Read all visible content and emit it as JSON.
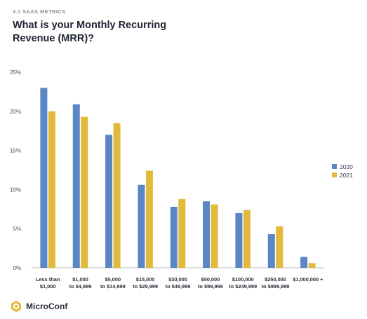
{
  "header": {
    "section": "4.1 SAAS METRICS",
    "title_lines": [
      "What is your Monthly Recurring",
      "Revenue (MRR)?"
    ]
  },
  "brand": {
    "name": "MicroConf"
  },
  "colors": {
    "series_2020": "#5a86c5",
    "series_2021": "#e2b93b",
    "axis": "#b9bcc2"
  },
  "chart_data": {
    "type": "bar",
    "title": "What is your Monthly Recurring Revenue (MRR)?",
    "categories": [
      [
        "Less than",
        "$1,000"
      ],
      [
        "$1,000",
        "to $4,999"
      ],
      [
        "$5,000",
        "to $14,999"
      ],
      [
        "$15,000",
        "to $29,999"
      ],
      [
        "$30,000",
        "to $49,999"
      ],
      [
        "$50,000",
        "to $99,999"
      ],
      [
        "$100,000",
        "to $249,999"
      ],
      [
        "$250,000",
        "to $999,999"
      ],
      [
        "$1,000,000 +"
      ]
    ],
    "series": [
      {
        "name": "2020",
        "values": [
          23.0,
          20.9,
          17.0,
          10.6,
          7.8,
          8.5,
          7.0,
          4.3,
          1.4
        ]
      },
      {
        "name": "2021",
        "values": [
          20.0,
          19.3,
          18.5,
          12.4,
          8.8,
          8.1,
          7.4,
          5.3,
          0.6
        ]
      }
    ],
    "y_ticks": [
      "0%",
      "5%",
      "10%",
      "15%",
      "20%",
      "25%"
    ],
    "y_tick_values": [
      0,
      5,
      10,
      15,
      20,
      25
    ],
    "ylim": [
      0,
      25
    ],
    "unit": "%",
    "legend_position": "right",
    "grid": false
  }
}
